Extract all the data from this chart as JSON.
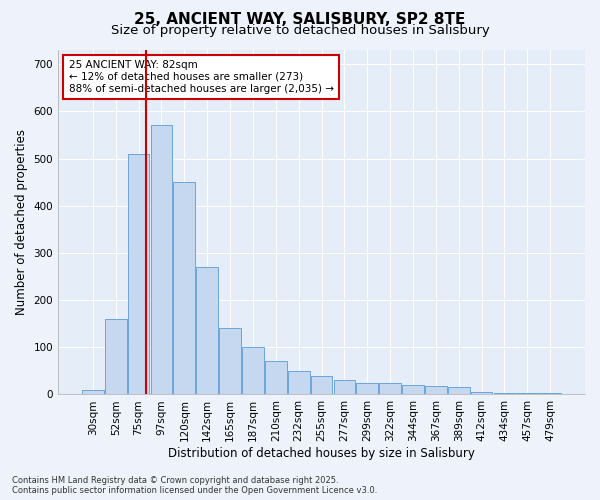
{
  "title_line1": "25, ANCIENT WAY, SALISBURY, SP2 8TE",
  "title_line2": "Size of property relative to detached houses in Salisbury",
  "xlabel": "Distribution of detached houses by size in Salisbury",
  "ylabel": "Number of detached properties",
  "bar_color": "#c5d8f0",
  "bar_edge_color": "#5b9bd5",
  "background_color": "#dde8f5",
  "plot_bg_color": "#e4edf8",
  "grid_color": "#ffffff",
  "fig_bg_color": "#eef3fb",
  "vline_color": "#cc0000",
  "annotation_text": "25 ANCIENT WAY: 82sqm\n← 12% of detached houses are smaller (273)\n88% of semi-detached houses are larger (2,035) →",
  "footer_line1": "Contains HM Land Registry data © Crown copyright and database right 2025.",
  "footer_line2": "Contains public sector information licensed under the Open Government Licence v3.0.",
  "categories": [
    "30sqm",
    "52sqm",
    "75sqm",
    "97sqm",
    "120sqm",
    "142sqm",
    "165sqm",
    "187sqm",
    "210sqm",
    "232sqm",
    "255sqm",
    "277sqm",
    "299sqm",
    "322sqm",
    "344sqm",
    "367sqm",
    "389sqm",
    "412sqm",
    "434sqm",
    "457sqm",
    "479sqm"
  ],
  "values": [
    10,
    160,
    510,
    570,
    450,
    270,
    140,
    100,
    70,
    50,
    40,
    30,
    25,
    25,
    20,
    18,
    15,
    5,
    3,
    3,
    3
  ],
  "ylim": [
    0,
    730
  ],
  "yticks": [
    0,
    100,
    200,
    300,
    400,
    500,
    600,
    700
  ],
  "title_fontsize": 11,
  "subtitle_fontsize": 9.5,
  "tick_fontsize": 7.5,
  "label_fontsize": 8.5,
  "annotation_fontsize": 7.5
}
